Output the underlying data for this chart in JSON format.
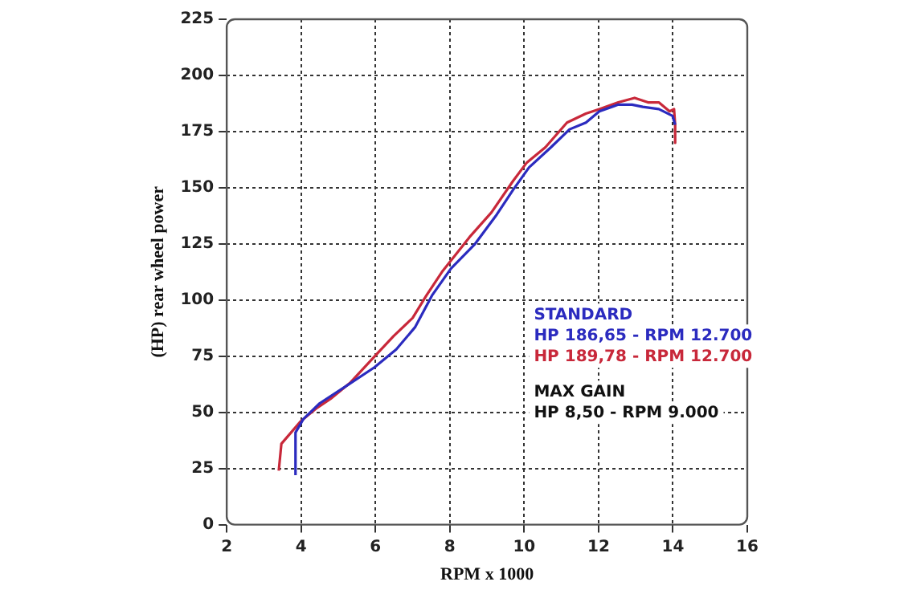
{
  "chart_data": {
    "type": "line",
    "xlabel": "RPM x 1000",
    "ylabel": "(HP) rear wheel power",
    "xlim": [
      2,
      16
    ],
    "xticks": [
      2,
      4,
      6,
      8,
      10,
      12,
      14,
      16
    ],
    "ylim": [
      0,
      225
    ],
    "yticks": [
      0,
      25,
      50,
      75,
      100,
      125,
      150,
      175,
      200,
      225
    ],
    "grid": true,
    "legend": "right",
    "marker": "none",
    "line_style": "solid",
    "annotations": [
      "HP 186,65 - RPM 12.700",
      "HP 189,78 - RPM 12.700",
      "MAX GAIN",
      "HP 8,50 - RPM 9.000"
    ],
    "series": [
      {
        "name": "STANDARD",
        "color": "#2b2bbf",
        "x": [
          3.85,
          3.85,
          4.06,
          4.5,
          5.24,
          5.97,
          6.56,
          7.07,
          7.52,
          8.03,
          8.68,
          9.26,
          9.7,
          10.13,
          10.72,
          11.22,
          11.66,
          12.02,
          12.53,
          12.9,
          13.19,
          13.62,
          13.99,
          14.06
        ],
        "values": [
          22,
          41,
          47,
          54,
          62,
          70,
          78,
          88,
          102,
          114,
          125,
          138,
          149,
          159,
          168,
          176,
          179,
          184,
          187,
          187,
          186,
          185,
          182,
          178
        ]
      },
      {
        "color": "#c8283a",
        "x": [
          3.4,
          3.47,
          3.99,
          4.43,
          4.79,
          5.31,
          6.04,
          6.49,
          7.0,
          7.37,
          7.81,
          8.53,
          9.12,
          9.7,
          10.06,
          10.57,
          11.15,
          11.66,
          12.02,
          12.53,
          12.97,
          13.33,
          13.62,
          13.91,
          14.03,
          14.06,
          14.06
        ],
        "values": [
          24,
          36,
          46,
          52,
          56,
          63,
          76,
          84,
          92,
          102,
          113,
          128,
          139,
          153,
          161,
          168,
          179,
          183,
          185,
          188,
          190,
          188,
          188,
          184,
          185,
          178,
          170
        ]
      }
    ]
  }
}
